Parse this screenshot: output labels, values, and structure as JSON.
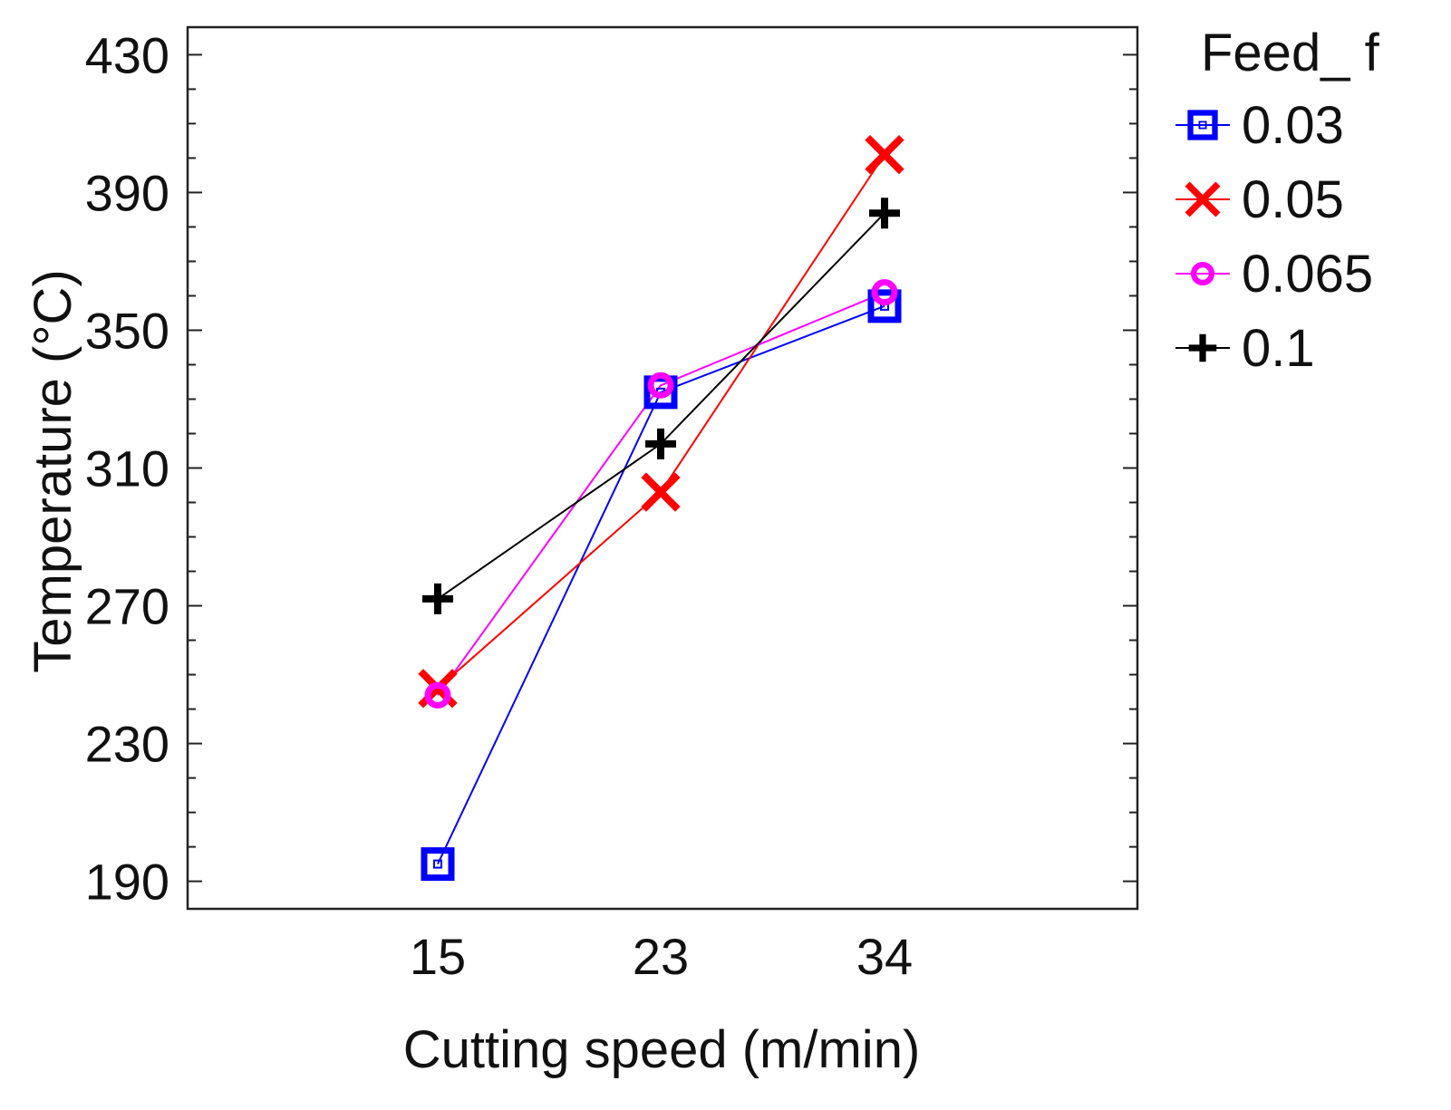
{
  "chart_data": {
    "type": "line",
    "xlabel": "Cutting speed (m/min)",
    "ylabel": "Temperature (°C)",
    "categories": [
      "15",
      "23",
      "34"
    ],
    "y_ticks": [
      "190",
      "230",
      "270",
      "310",
      "350",
      "390",
      "430"
    ],
    "ylim": [
      182,
      438
    ],
    "grid": false,
    "legend": {
      "title": "Feed_ f",
      "placement": "right-outside-top"
    },
    "series": [
      {
        "name": "0.03",
        "color": "#0000ff",
        "marker": "square",
        "values": [
          195,
          332,
          357
        ]
      },
      {
        "name": "0.05",
        "color": "#ff0000",
        "marker": "x",
        "values": [
          246,
          303,
          401
        ]
      },
      {
        "name": "0.065",
        "color": "#ff00ff",
        "marker": "circle",
        "values": [
          244,
          334,
          361
        ]
      },
      {
        "name": "0.1",
        "color": "#000000",
        "marker": "plus",
        "values": [
          272,
          317,
          384
        ]
      }
    ]
  }
}
